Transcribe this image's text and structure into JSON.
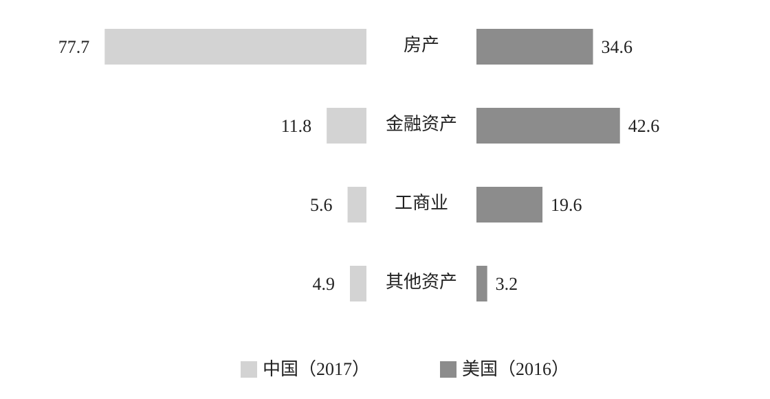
{
  "chart_data": {
    "type": "butterfly",
    "categories": [
      "房产",
      "金融资产",
      "工商业",
      "其他资产"
    ],
    "series": [
      {
        "name": "中国（2017）",
        "color": "#d3d3d3",
        "values": [
          77.7,
          11.8,
          5.6,
          4.9
        ]
      },
      {
        "name": "美国（2016）",
        "color": "#8c8c8c",
        "values": [
          34.6,
          42.6,
          19.6,
          3.2
        ]
      }
    ]
  }
}
